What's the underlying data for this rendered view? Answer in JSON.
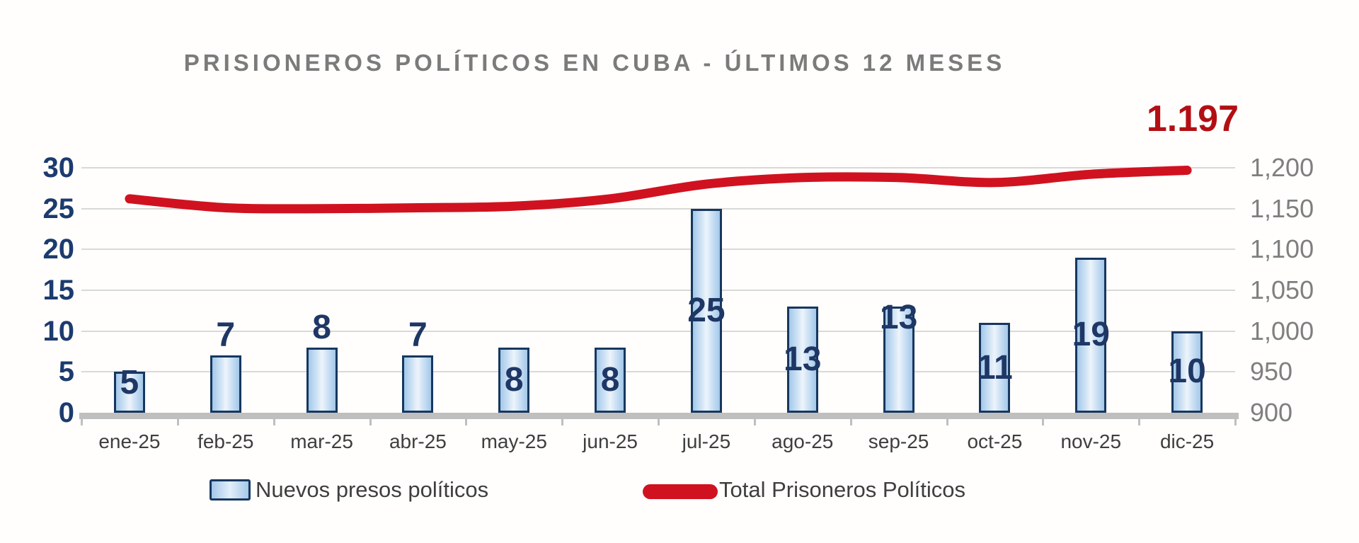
{
  "chart_data": {
    "type": "combo-bar-line",
    "title": "PRISIONEROS POLÍTICOS EN CUBA - ÚLTIMOS 12 MESES",
    "categories": [
      "ene-25",
      "feb-25",
      "mar-25",
      "abr-25",
      "may-25",
      "jun-25",
      "jul-25",
      "ago-25",
      "sep-25",
      "oct-25",
      "nov-25",
      "dic-25"
    ],
    "series": [
      {
        "name": "Nuevos presos políticos",
        "type": "bar",
        "axis": "left",
        "values": [
          5,
          7,
          8,
          7,
          8,
          8,
          25,
          13,
          13,
          11,
          19,
          10
        ],
        "label_positions": [
          "top",
          "above",
          "above",
          "above",
          "center",
          "center",
          "center",
          "center",
          "top",
          "center",
          "center",
          "center"
        ]
      },
      {
        "name": "Total Prisoneros Políticos",
        "type": "line",
        "axis": "right",
        "values": [
          1162,
          1151,
          1150,
          1151,
          1153,
          1162,
          1180,
          1188,
          1188,
          1182,
          1192,
          1197
        ],
        "end_label": "1.197"
      }
    ],
    "left_axis": {
      "range": [
        0,
        30
      ],
      "tick_step": 5,
      "tick_labels": [
        "0",
        "5",
        "10",
        "15",
        "20",
        "25",
        "30"
      ]
    },
    "right_axis": {
      "range": [
        900,
        1200
      ],
      "tick_step": 50,
      "tick_labels": [
        "900",
        "950",
        "1,000",
        "1,050",
        "1,100",
        "1,150",
        "1,200"
      ]
    },
    "grid": true,
    "legend_position": "bottom"
  },
  "colors": {
    "bar_border": "#17375e",
    "bar_fill_edge": "#a3c8e9",
    "bar_fill_center": "#edf4fb",
    "bar_value_label": "#1e3765",
    "line": "#d01220",
    "total_label": "#b20f15",
    "title": "#7b7b7b",
    "left_axis_text": "#1c3b6e",
    "right_axis_text": "#7f7f7f",
    "x_axis_text": "#3e3e3e",
    "gridline": "#d9d9d9",
    "axis_line": "#bfbfbf",
    "legend_text": "#3e3e3e"
  }
}
